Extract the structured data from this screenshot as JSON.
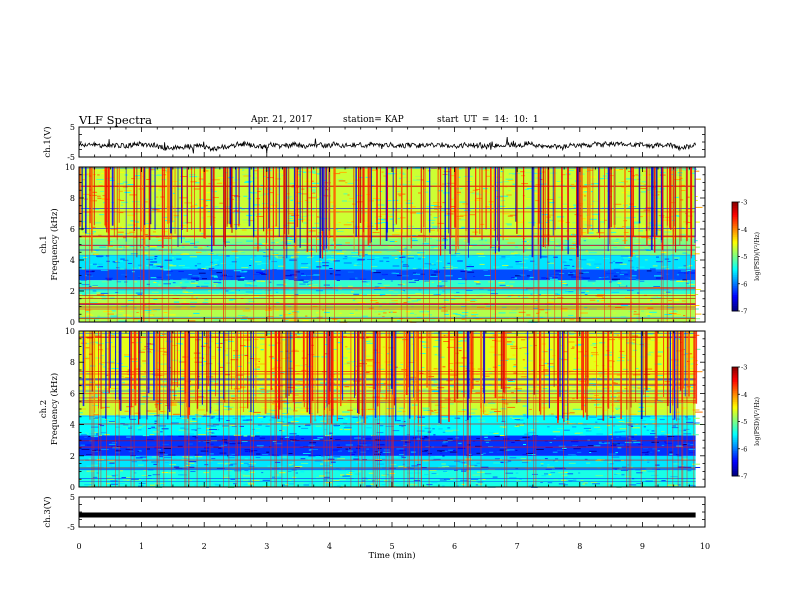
{
  "header": {
    "title": "VLF Spectra",
    "date": "Apr. 21, 2017",
    "station": "station= KAP",
    "start": "start UT = 14: 10: 1"
  },
  "chart_data": [
    {
      "id": "ch1-waveform",
      "type": "line",
      "ylabel": "ch.1(V)",
      "ylim": [
        -5,
        5
      ],
      "yticks": [
        "5",
        "-5"
      ],
      "xlim": [
        0,
        10
      ],
      "series": [
        {
          "style": "noisy-waveform",
          "mean": -1.0,
          "spread": 1.0
        }
      ]
    },
    {
      "id": "ch1-spectrogram",
      "type": "heatmap",
      "ylabel": "ch.1",
      "ylabel2": "Frequency (kHz)",
      "ylim": [
        0,
        10
      ],
      "yticks": [
        "0",
        "2",
        "4",
        "6",
        "8",
        "10"
      ],
      "xlim": [
        0,
        9.85
      ],
      "bands": [
        {
          "from": 0.0,
          "to": 1.8,
          "level": -4.8
        },
        {
          "from": 1.8,
          "to": 2.7,
          "level": -5.3
        },
        {
          "from": 2.7,
          "to": 3.4,
          "level": -6.2
        },
        {
          "from": 3.4,
          "to": 4.3,
          "level": -5.6
        },
        {
          "from": 4.3,
          "to": 5.4,
          "level": -5.0
        },
        {
          "from": 5.4,
          "to": 10.0,
          "level": -4.7
        }
      ],
      "colorbar": {
        "label": "log(PSD)(V²/Hz)",
        "range": [
          -7,
          -3
        ],
        "ticks": [
          "-3",
          "-4",
          "-5",
          "-6",
          "-7"
        ]
      }
    },
    {
      "id": "ch2-spectrogram",
      "type": "heatmap",
      "ylabel": "ch.2",
      "ylabel2": "Frequency (kHz)",
      "ylim": [
        0,
        10
      ],
      "yticks": [
        "0",
        "2",
        "4",
        "6",
        "8",
        "10"
      ],
      "xlim": [
        0,
        9.85
      ],
      "bands": [
        {
          "from": 0.0,
          "to": 1.2,
          "level": -5.4
        },
        {
          "from": 1.2,
          "to": 2.0,
          "level": -5.6
        },
        {
          "from": 2.0,
          "to": 3.3,
          "level": -6.3
        },
        {
          "from": 3.3,
          "to": 4.6,
          "level": -5.5
        },
        {
          "from": 4.6,
          "to": 6.3,
          "level": -4.7
        },
        {
          "from": 6.3,
          "to": 10.0,
          "level": -4.6
        }
      ],
      "colorbar": {
        "label": "log(PSD)(V²/Hz)",
        "range": [
          -7,
          -3
        ],
        "ticks": [
          "-3",
          "-4",
          "-5",
          "-6",
          "-7"
        ]
      }
    },
    {
      "id": "ch3-waveform",
      "type": "line",
      "ylabel": "ch.3(V)",
      "ylim": [
        -5,
        5
      ],
      "yticks": [
        "5",
        "-5"
      ],
      "xlim": [
        0,
        10
      ],
      "series": [
        {
          "style": "flat",
          "value": -1.0
        }
      ]
    }
  ],
  "xaxis": {
    "label": "Time (min)",
    "ticks": [
      "0",
      "1",
      "2",
      "3",
      "4",
      "5",
      "6",
      "7",
      "8",
      "9",
      "10"
    ]
  }
}
